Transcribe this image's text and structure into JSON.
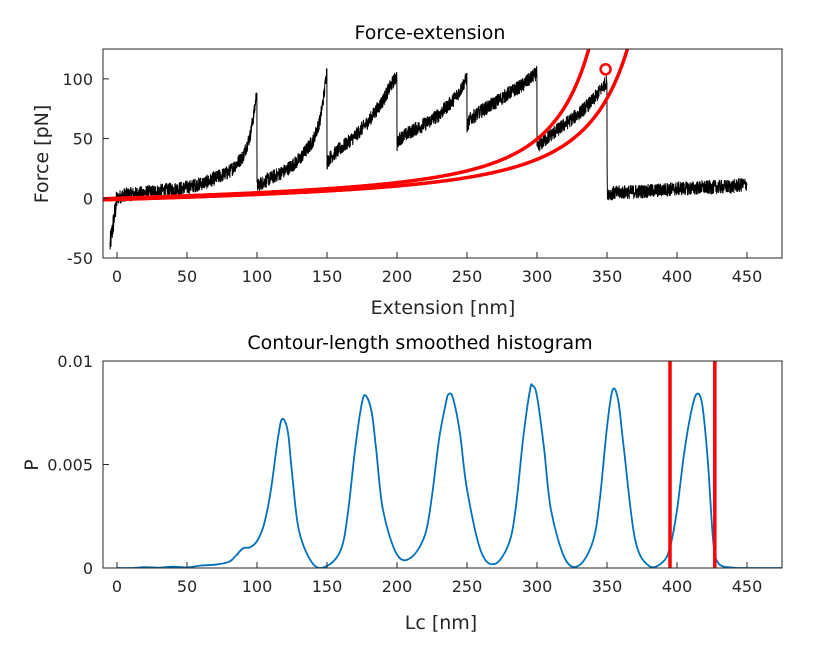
{
  "chart_data": [
    {
      "type": "line",
      "title": "Force-extension",
      "xlabel": "Extension [nm]",
      "ylabel": "Force [pN]",
      "xlim": [
        -10,
        475
      ],
      "ylim": [
        -50,
        125
      ],
      "xticks": [
        0,
        50,
        100,
        150,
        200,
        250,
        300,
        350,
        400,
        450
      ],
      "yticks": [
        -50,
        0,
        50,
        100
      ],
      "grid": false,
      "trace_color": "#000000",
      "fit_color": "#ff0000",
      "series": [
        {
          "kind": "trace",
          "x": [
            -5,
            0,
            5,
            15,
            30,
            50,
            65,
            80,
            90,
            95,
            98,
            99.9,
            100,
            100.1,
            102,
            110,
            120,
            130,
            140,
            145,
            148,
            149.9,
            150,
            150.1,
            152,
            160,
            170,
            180,
            190,
            195,
            198,
            199.9,
            200,
            200.1,
            202,
            210,
            220,
            230,
            240,
            245,
            248,
            249.9,
            250,
            250.1,
            252,
            260,
            270,
            280,
            290,
            295,
            298,
            299.9,
            300,
            300.1,
            302,
            310,
            320,
            330,
            340,
            345,
            348,
            349.9,
            350,
            350.2,
            352,
            360,
            380,
            400,
            420,
            440,
            450
          ],
          "y": [
            -40,
            0,
            3,
            4,
            6,
            9,
            14,
            22,
            35,
            52,
            72,
            90,
            10,
            10,
            12,
            17,
            23,
            32,
            48,
            65,
            88,
            108,
            30,
            30,
            34,
            42,
            52,
            65,
            82,
            93,
            99,
            102,
            45,
            45,
            50,
            56,
            62,
            70,
            82,
            90,
            97,
            101,
            60,
            60,
            66,
            73,
            80,
            88,
            95,
            100,
            103,
            105,
            40,
            40,
            45,
            53,
            62,
            71,
            82,
            90,
            95,
            98,
            55,
            5,
            4,
            5,
            6,
            8,
            9,
            10,
            12
          ]
        },
        {
          "kind": "wlc-fit",
          "contour_length_nm": 395,
          "persistence_length_nm": 0.4,
          "force_offset_pN": 0
        },
        {
          "kind": "wlc-fit",
          "contour_length_nm": 427,
          "persistence_length_nm": 0.4,
          "force_offset_pN": -1
        }
      ],
      "marker": {
        "x": 349,
        "y": 108,
        "shape": "circle",
        "color": "#ff0000"
      }
    },
    {
      "type": "line",
      "title": "Contour-length smoothed histogram",
      "xlabel": "Lc [nm]",
      "ylabel": "P",
      "xlim": [
        -10,
        475
      ],
      "ylim": [
        0,
        0.01
      ],
      "xticks": [
        0,
        50,
        100,
        150,
        200,
        250,
        300,
        350,
        400,
        450
      ],
      "yticks": [
        0,
        0.005,
        0.01
      ],
      "ytick_labels": [
        "0",
        "0.005",
        "0.01"
      ],
      "grid": false,
      "line_color": "#0072bd",
      "vlines": [
        {
          "x": 395,
          "color": "#ff0000"
        },
        {
          "x": 427,
          "color": "#ff0000"
        }
      ],
      "x": [
        0,
        10,
        20,
        30,
        40,
        50,
        60,
        70,
        80,
        85,
        90,
        95,
        100,
        105,
        110,
        115,
        118,
        122,
        125,
        130,
        140,
        150,
        160,
        165,
        170,
        175,
        178,
        182,
        185,
        190,
        200,
        210,
        220,
        225,
        230,
        235,
        237,
        240,
        245,
        250,
        260,
        270,
        280,
        285,
        290,
        295,
        297,
        300,
        305,
        310,
        320,
        330,
        340,
        345,
        350,
        354,
        358,
        362,
        370,
        380,
        390,
        395,
        400,
        405,
        410,
        414,
        418,
        422,
        426,
        430,
        440,
        450,
        460,
        475
      ],
      "y": [
        0,
        0,
        4e-05,
        2e-05,
        7e-05,
        3e-05,
        0.00012,
        0.00016,
        0.0003,
        0.0006,
        0.00095,
        0.001,
        0.0013,
        0.0021,
        0.0038,
        0.0063,
        0.0072,
        0.0066,
        0.0046,
        0.0018,
        0.0002,
        0.0001,
        0.0009,
        0.0027,
        0.0057,
        0.008,
        0.0083,
        0.0075,
        0.0058,
        0.0028,
        0.00065,
        0.0005,
        0.0016,
        0.0035,
        0.0062,
        0.008,
        0.0084,
        0.0082,
        0.0065,
        0.0038,
        0.0008,
        0.0002,
        0.0012,
        0.003,
        0.0062,
        0.0086,
        0.0088,
        0.0083,
        0.0058,
        0.0028,
        0.00045,
        0.00012,
        0.0013,
        0.0034,
        0.0068,
        0.0086,
        0.0081,
        0.0058,
        0.0014,
        0.0001,
        0.0003,
        0.001,
        0.0028,
        0.0055,
        0.0075,
        0.0084,
        0.0079,
        0.0052,
        0.0012,
        0.0002,
        2e-05,
        0,
        0,
        0
      ]
    }
  ]
}
